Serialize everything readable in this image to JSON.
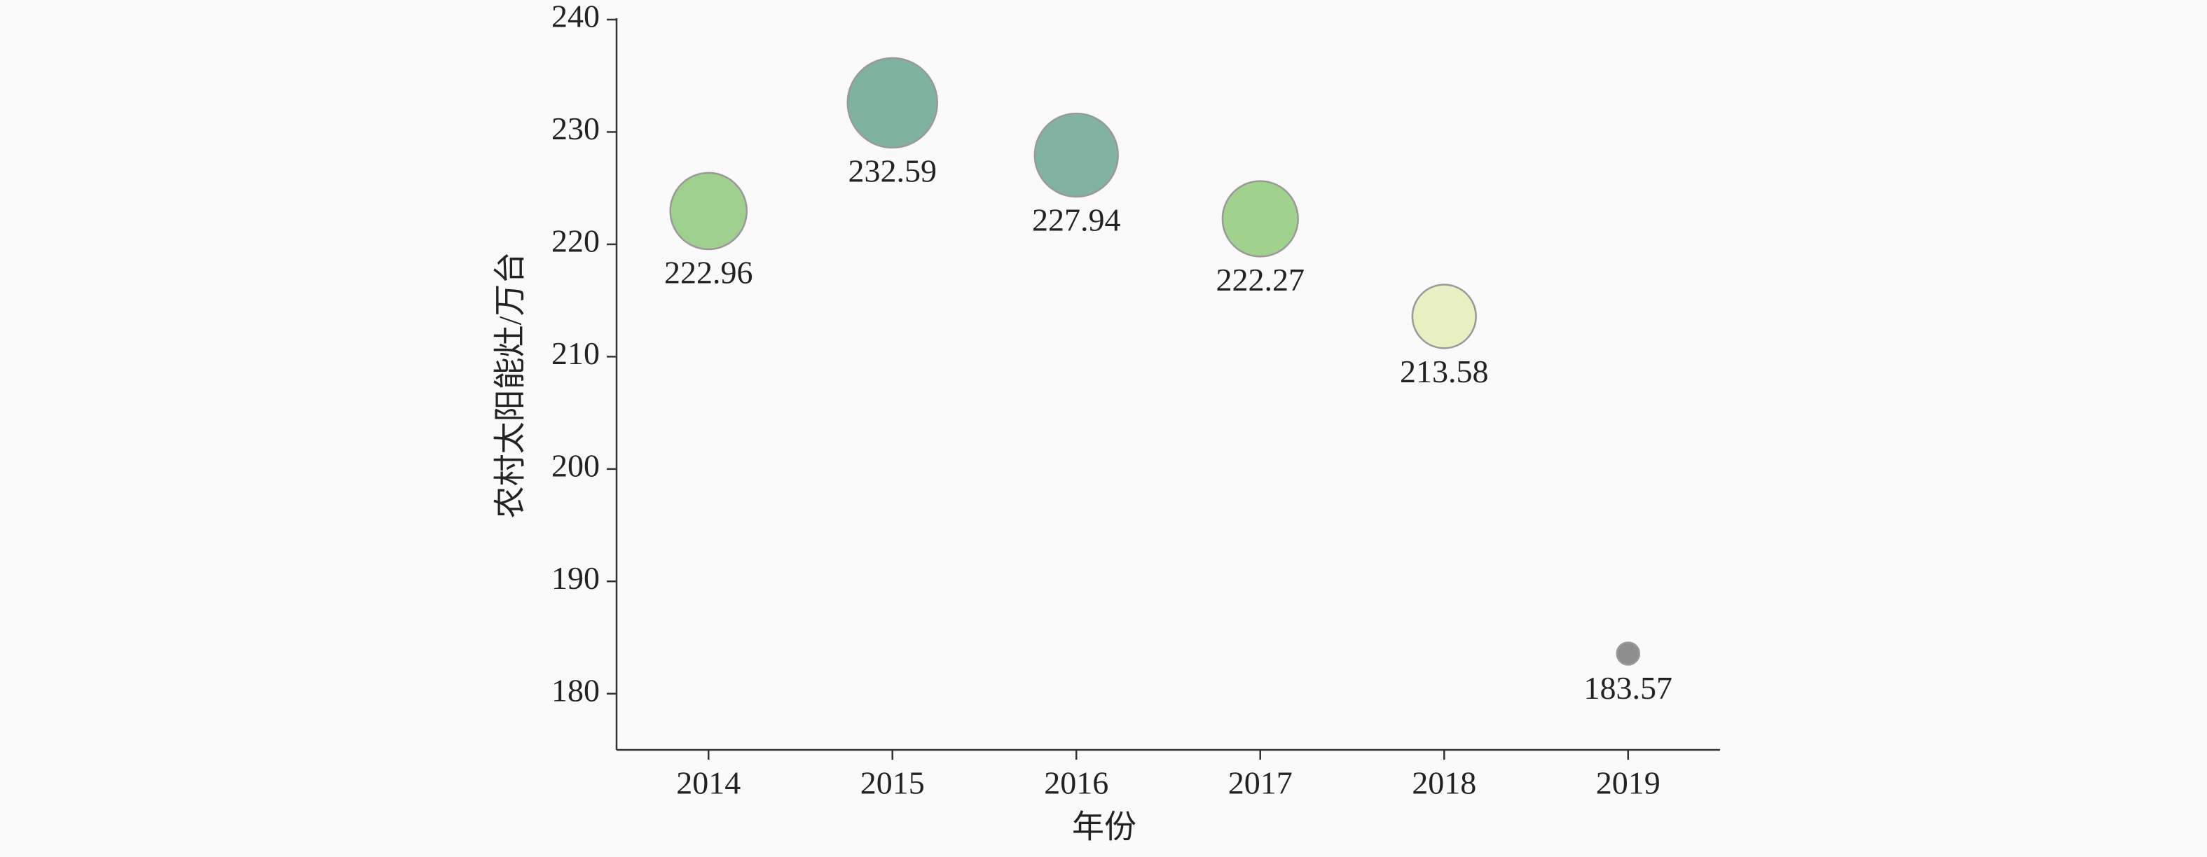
{
  "chart_data": {
    "type": "bubble",
    "x_label": "年份",
    "y_label": "农村太阳能灶/万台",
    "categories": [
      "2014",
      "2015",
      "2016",
      "2017",
      "2018",
      "2019"
    ],
    "values": [
      222.96,
      232.59,
      227.94,
      222.27,
      213.58,
      183.57
    ],
    "colors": [
      "#a0d090",
      "#80b2a0",
      "#82b2a2",
      "#a0d28e",
      "#e8efc2",
      "#8e8e8e"
    ],
    "ylim": [
      175,
      240
    ],
    "yticks": [
      180,
      190,
      200,
      210,
      220,
      230,
      240
    ],
    "grid": false
  }
}
